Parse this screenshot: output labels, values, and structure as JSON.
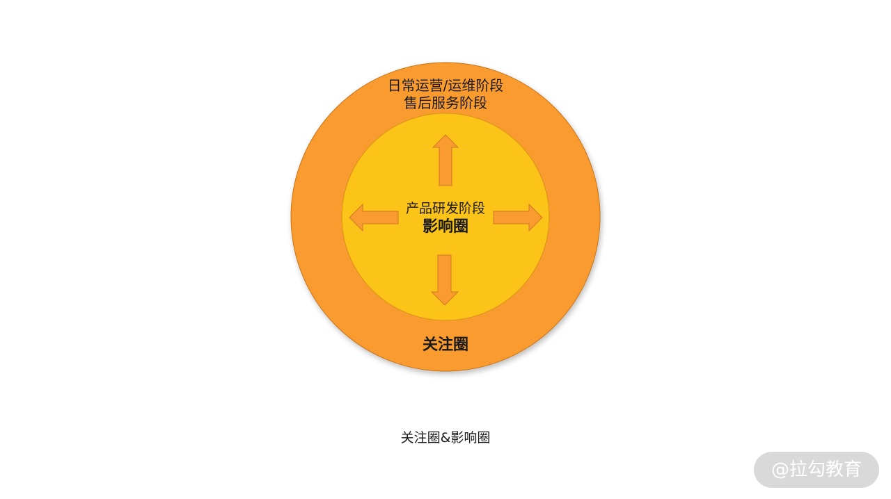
{
  "diagram": {
    "outer_circle": {
      "label_lines": [
        "日常运营/运维阶段",
        "售后服务阶段"
      ],
      "title": "关注圈",
      "fill": "#f99b2f"
    },
    "inner_circle": {
      "label": "产品研发阶段",
      "title": "影响圈",
      "fill": "#fcc419"
    },
    "arrows": {
      "directions": [
        "up",
        "down",
        "left",
        "right"
      ],
      "fill": "#f99b2f"
    }
  },
  "caption": "关注圈&影响圈",
  "watermark": "@拉勾教育"
}
